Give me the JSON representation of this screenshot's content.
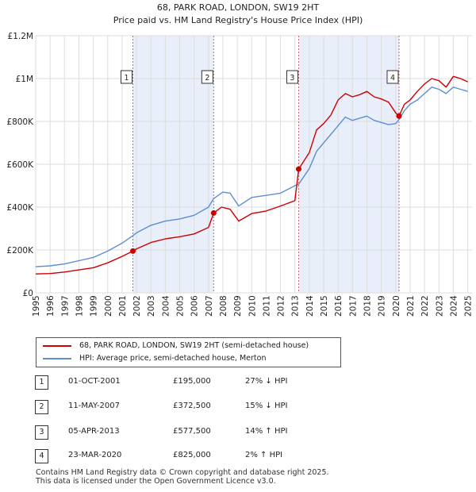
{
  "chart_data": {
    "type": "line",
    "title": "68, PARK ROAD, LONDON, SW19 2HT",
    "subtitle": "Price paid vs. HM Land Registry's House Price Index (HPI)",
    "xlabel": "",
    "ylabel": "",
    "xlim": [
      1995,
      2025.3
    ],
    "ylim": [
      0,
      1200000
    ],
    "x_ticks": [
      1995,
      1996,
      1997,
      1998,
      1999,
      2000,
      2001,
      2002,
      2003,
      2004,
      2005,
      2006,
      2007,
      2008,
      2009,
      2010,
      2011,
      2012,
      2013,
      2014,
      2015,
      2016,
      2017,
      2018,
      2019,
      2020,
      2021,
      2022,
      2023,
      2024,
      2025
    ],
    "y_ticks": [
      {
        "value": 0,
        "label": "£0"
      },
      {
        "value": 200000,
        "label": "£200K"
      },
      {
        "value": 400000,
        "label": "£400K"
      },
      {
        "value": 600000,
        "label": "£600K"
      },
      {
        "value": 800000,
        "label": "£800K"
      },
      {
        "value": 1000000,
        "label": "£1M"
      },
      {
        "value": 1200000,
        "label": "£1.2M"
      }
    ],
    "grid": true,
    "shaded_ranges": [
      [
        2001.75,
        2007.36
      ],
      [
        2013.26,
        2020.23
      ]
    ],
    "series": [
      {
        "name": "68, PARK ROAD, LONDON, SW19 2HT (semi-detached house)",
        "color": "#cc0000",
        "points": [
          [
            1995,
            88000
          ],
          [
            1996,
            90000
          ],
          [
            1997,
            97000
          ],
          [
            1998,
            107000
          ],
          [
            1999,
            117000
          ],
          [
            2000,
            140000
          ],
          [
            2001,
            170000
          ],
          [
            2001.75,
            195000
          ],
          [
            2002,
            205000
          ],
          [
            2003,
            235000
          ],
          [
            2004,
            252000
          ],
          [
            2005,
            262000
          ],
          [
            2006,
            275000
          ],
          [
            2007,
            305000
          ],
          [
            2007.36,
            372500
          ],
          [
            2007.9,
            400000
          ],
          [
            2008.5,
            390000
          ],
          [
            2009.1,
            335000
          ],
          [
            2010,
            370000
          ],
          [
            2011,
            382000
          ],
          [
            2012,
            405000
          ],
          [
            2013,
            430000
          ],
          [
            2013.26,
            577500
          ],
          [
            2014,
            655000
          ],
          [
            2014.5,
            760000
          ],
          [
            2015,
            790000
          ],
          [
            2015.5,
            830000
          ],
          [
            2016,
            900000
          ],
          [
            2016.5,
            930000
          ],
          [
            2017,
            915000
          ],
          [
            2017.5,
            925000
          ],
          [
            2018,
            940000
          ],
          [
            2018.5,
            915000
          ],
          [
            2019,
            905000
          ],
          [
            2019.5,
            890000
          ],
          [
            2020,
            840000
          ],
          [
            2020.23,
            825000
          ],
          [
            2020.6,
            880000
          ],
          [
            2021,
            900000
          ],
          [
            2021.5,
            940000
          ],
          [
            2022,
            975000
          ],
          [
            2022.5,
            1000000
          ],
          [
            2023,
            990000
          ],
          [
            2023.5,
            960000
          ],
          [
            2024,
            1010000
          ],
          [
            2024.5,
            1000000
          ],
          [
            2025,
            985000
          ]
        ]
      },
      {
        "name": "HPI: Average price, semi-detached house, Merton",
        "color": "#5b8fd0",
        "points": [
          [
            1995,
            122000
          ],
          [
            1996,
            126000
          ],
          [
            1997,
            135000
          ],
          [
            1998,
            150000
          ],
          [
            1999,
            165000
          ],
          [
            2000,
            195000
          ],
          [
            2001,
            232000
          ],
          [
            2001.75,
            267000
          ],
          [
            2002,
            280000
          ],
          [
            2003,
            315000
          ],
          [
            2004,
            335000
          ],
          [
            2005,
            345000
          ],
          [
            2006,
            362000
          ],
          [
            2007,
            400000
          ],
          [
            2007.36,
            440000
          ],
          [
            2008,
            470000
          ],
          [
            2008.5,
            465000
          ],
          [
            2009.1,
            405000
          ],
          [
            2010,
            445000
          ],
          [
            2011,
            455000
          ],
          [
            2012,
            465000
          ],
          [
            2013,
            500000
          ],
          [
            2013.26,
            507000
          ],
          [
            2014,
            580000
          ],
          [
            2014.5,
            660000
          ],
          [
            2015,
            700000
          ],
          [
            2016,
            780000
          ],
          [
            2016.5,
            820000
          ],
          [
            2017,
            805000
          ],
          [
            2017.5,
            815000
          ],
          [
            2018,
            825000
          ],
          [
            2018.5,
            805000
          ],
          [
            2019,
            795000
          ],
          [
            2019.5,
            785000
          ],
          [
            2020,
            790000
          ],
          [
            2020.23,
            809000
          ],
          [
            2020.6,
            850000
          ],
          [
            2021,
            880000
          ],
          [
            2021.5,
            900000
          ],
          [
            2022,
            930000
          ],
          [
            2022.5,
            960000
          ],
          [
            2023,
            950000
          ],
          [
            2023.5,
            930000
          ],
          [
            2024,
            960000
          ],
          [
            2024.5,
            950000
          ],
          [
            2025,
            940000
          ]
        ]
      }
    ],
    "sales": [
      {
        "num": "1",
        "x": 2001.75,
        "y": 195000
      },
      {
        "num": "2",
        "x": 2007.36,
        "y": 372500
      },
      {
        "num": "3",
        "x": 2013.26,
        "y": 577500
      },
      {
        "num": "4",
        "x": 2020.23,
        "y": 825000
      }
    ],
    "marker_label_value": 1000000
  },
  "legend": {
    "property_label": "68, PARK ROAD, LONDON, SW19 2HT (semi-detached house)",
    "hpi_label": "HPI: Average price, semi-detached house, Merton"
  },
  "transactions": [
    {
      "num": "1",
      "date": "01-OCT-2001",
      "price": "£195,000",
      "hpi": "27% ↓ HPI"
    },
    {
      "num": "2",
      "date": "11-MAY-2007",
      "price": "£372,500",
      "hpi": "15% ↓ HPI"
    },
    {
      "num": "3",
      "date": "05-APR-2013",
      "price": "£577,500",
      "hpi": "14% ↑ HPI"
    },
    {
      "num": "4",
      "date": "23-MAR-2020",
      "price": "£825,000",
      "hpi": "2% ↑ HPI"
    }
  ],
  "footer": {
    "line1": "Contains HM Land Registry data © Crown copyright and database right 2025.",
    "line2": "This data is licensed under the Open Government Licence v3.0."
  },
  "colors": {
    "property": "#cc0000",
    "hpi": "#5b8fd0",
    "shade": "#e8eefa",
    "grid": "#dddddd",
    "marker_line": "#cc6666"
  }
}
